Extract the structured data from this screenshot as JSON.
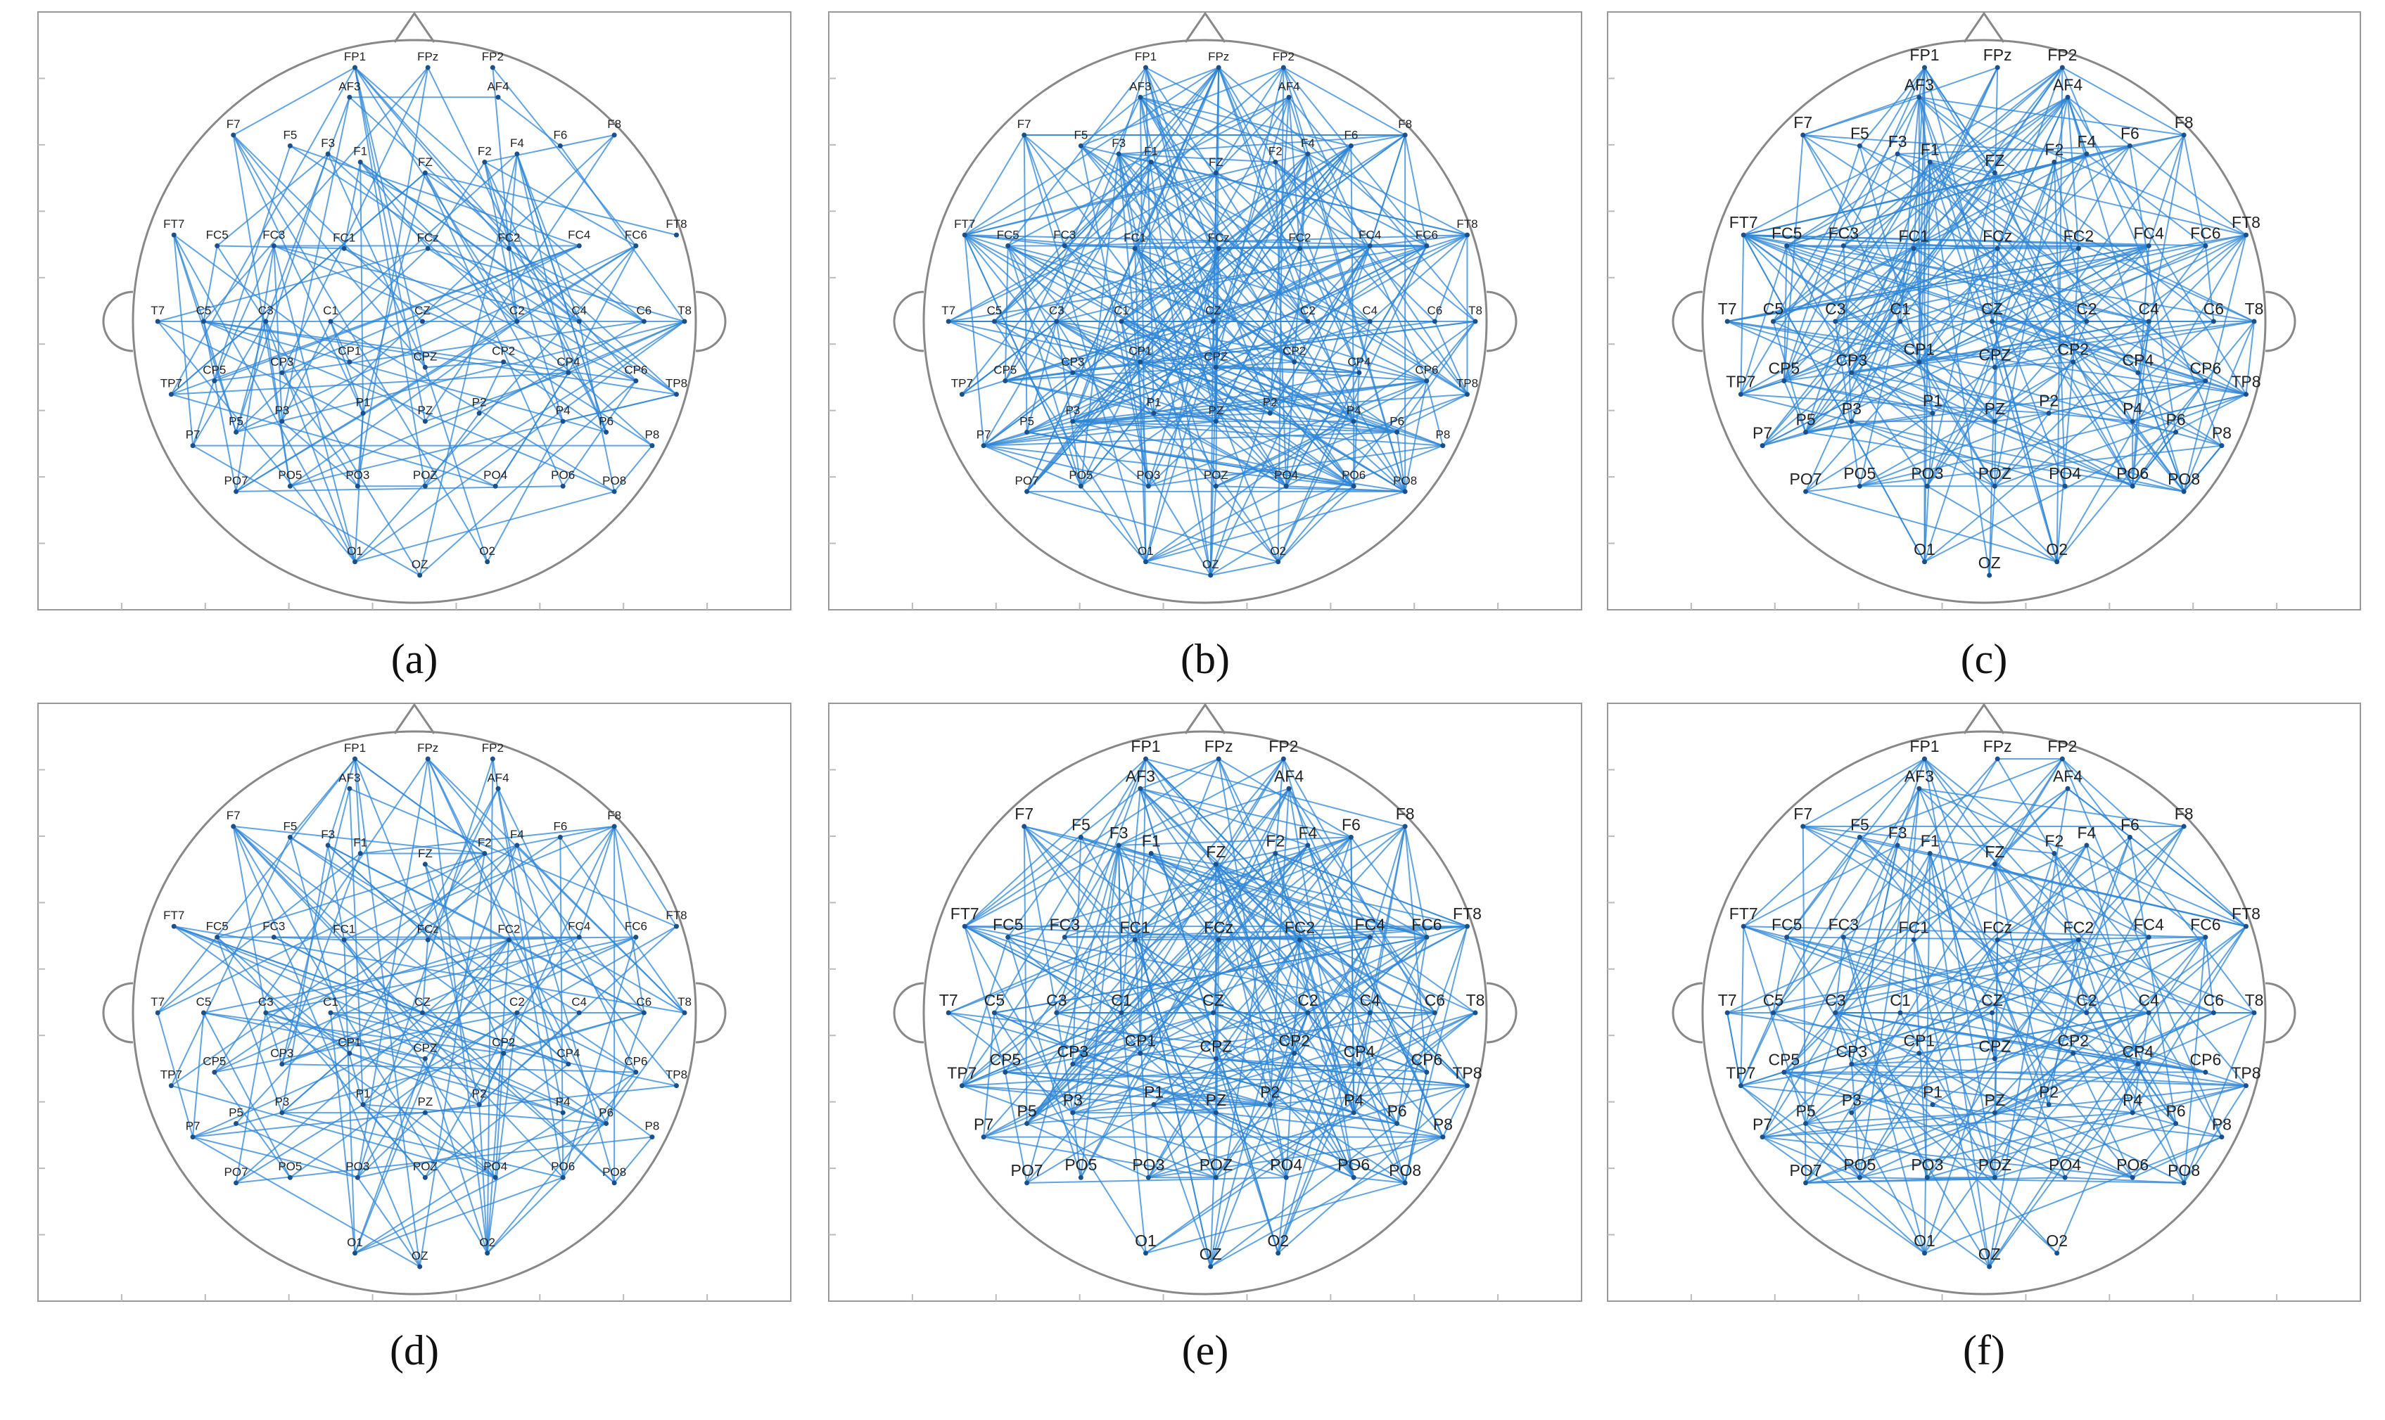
{
  "electrodes": [
    "FP1",
    "FPz",
    "FP2",
    "AF3",
    "AF4",
    "F7",
    "F5",
    "F3",
    "F1",
    "FZ",
    "F2",
    "F4",
    "F6",
    "F8",
    "FT7",
    "FC5",
    "FC3",
    "FC1",
    "FCz",
    "FC2",
    "FC4",
    "FC6",
    "FT8",
    "T7",
    "C5",
    "C3",
    "C1",
    "CZ",
    "C2",
    "C4",
    "C6",
    "T8",
    "TP7",
    "CP5",
    "CP3",
    "CP1",
    "CPZ",
    "CP2",
    "CP4",
    "CP6",
    "TP8",
    "P7",
    "P5",
    "P3",
    "P1",
    "PZ",
    "P2",
    "P4",
    "P6",
    "P8",
    "PO7",
    "PO5",
    "PO3",
    "POZ",
    "PO4",
    "PO6",
    "PO8",
    "O1",
    "OZ",
    "O2"
  ],
  "panels": [
    {
      "caption": "(a)"
    },
    {
      "caption": "(b)"
    },
    {
      "caption": "(c)"
    },
    {
      "caption": "(d)"
    },
    {
      "caption": "(e)"
    },
    {
      "caption": "(f)"
    }
  ]
}
